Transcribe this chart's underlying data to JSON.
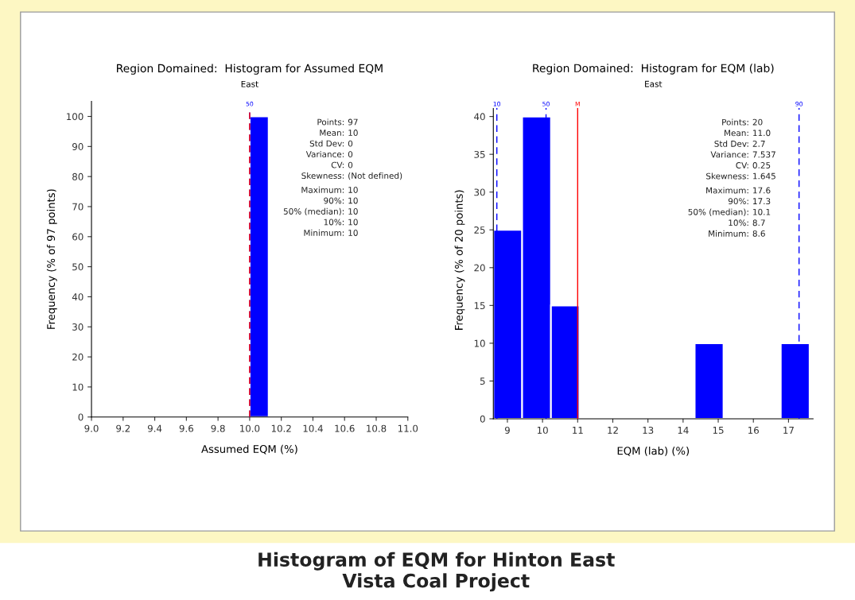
{
  "chart_data": [
    {
      "type": "histogram",
      "title": "Region Domained:  Histogram for Assumed EQM",
      "subtitle": "East",
      "xlabel": "Assumed EQM (%)",
      "ylabel": "Frequency (% of 97 points)",
      "bins": [
        10.0,
        10.12
      ],
      "values": [
        100
      ],
      "color": "#0000ff",
      "xlim": [
        9.0,
        11.0
      ],
      "xticks": [
        {
          "value": 9.0,
          "label": "9.0"
        },
        9.2,
        9.4,
        9.6,
        9.8,
        {
          "value": 10.0,
          "label": "10.0"
        },
        10.2,
        10.4,
        10.6,
        10.8,
        {
          "value": 11.0,
          "label": "11.0"
        }
      ],
      "ylim": [
        0,
        105
      ],
      "yticks": [
        0,
        10,
        20,
        30,
        40,
        50,
        60,
        70,
        80,
        90,
        100
      ],
      "ref_lines": [
        {
          "axis": "x",
          "value": 10,
          "color": "#0000ff",
          "line_style": "dashed"
        },
        {
          "axis": "x",
          "value": 10,
          "color": "#ff0000",
          "line_style": "dashed"
        }
      ],
      "annotations": [
        {
          "text": "50",
          "x": 10,
          "y": 104
        },
        "Points: 97",
        "Mean: 10",
        "Std Dev: 0",
        "Variance: 0",
        "CV: 0",
        "Skewness: (Not defined)",
        "Maximum: 10",
        "90%: 10",
        "50% (median): 10",
        "10%: 10",
        "Minimum: 10"
      ],
      "grid": false,
      "legend": false
    },
    {
      "type": "histogram",
      "title": "Region Domained:  Histogram for EQM (lab)",
      "subtitle": "East",
      "xlabel": "EQM (lab) (%)",
      "ylabel": "Frequency (% of 20 points)",
      "bins": [
        8.6,
        9.42,
        10.24,
        11.05,
        11.87,
        12.69,
        13.51,
        14.33,
        15.15,
        15.96,
        16.78,
        17.6
      ],
      "values": [
        25,
        40,
        15,
        0,
        0,
        0,
        0,
        10,
        0,
        0,
        10
      ],
      "color": "#0000ff",
      "xlim": [
        8.6,
        17.7
      ],
      "xticks": [
        9,
        10,
        11,
        12,
        13,
        14,
        15,
        16,
        17
      ],
      "ylim": [
        0,
        42
      ],
      "yticks": [
        0,
        5,
        10,
        15,
        20,
        25,
        30,
        35,
        40
      ],
      "ref_lines": [
        {
          "axis": "x",
          "value": 8.7,
          "color": "#0000ff",
          "line_style": "dashed"
        },
        {
          "axis": "x",
          "value": 10.1,
          "color": "#0000ff",
          "line_style": "dashed"
        },
        {
          "axis": "x",
          "value": 11.0,
          "color": "#ff0000",
          "line_style": "solid"
        },
        {
          "axis": "x",
          "value": 17.3,
          "color": "#0000ff",
          "line_style": "dashed"
        }
      ],
      "annotations": [
        {
          "text": "10",
          "x": 8.7,
          "y": 41.6
        },
        {
          "text": "50",
          "x": 10.1,
          "y": 41.6
        },
        {
          "text": "M",
          "x": 11.0,
          "y": 41.6
        },
        {
          "text": "90",
          "x": 17.3,
          "y": 41.6
        },
        "Points: 20",
        "Mean: 11.0",
        "Std Dev: 2.7",
        "Variance: 7.537",
        "CV: 0.25",
        "Skewness: 1.645",
        "Maximum: 17.6",
        "90%: 17.3",
        "50% (median): 10.1",
        "10%: 8.7",
        "Minimum: 8.6"
      ],
      "grid": false,
      "legend": false
    },
    {
      "type": "other",
      "title": "Histogram of EQM for Hinton East\nVista Coal Project"
    }
  ]
}
